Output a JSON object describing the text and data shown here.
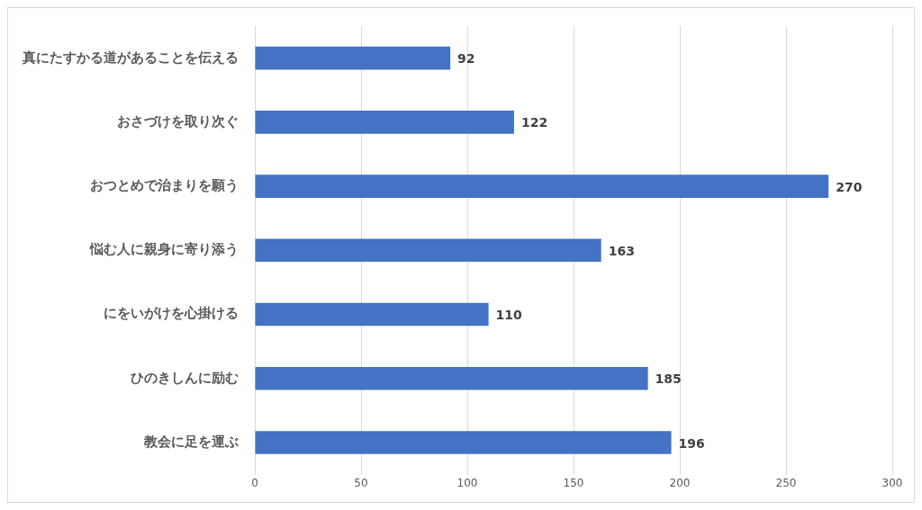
{
  "chart_data": {
    "type": "bar",
    "orientation": "horizontal",
    "categories": [
      "真にたすかる道があることを伝える",
      "おさづけを取り次ぐ",
      "おつとめで治まりを願う",
      "悩む人に親身に寄り添う",
      "にをいがけを心掛ける",
      "ひのきしんに励む",
      "教会に足を運ぶ"
    ],
    "values": [
      92,
      122,
      270,
      163,
      110,
      185,
      196
    ],
    "color": "#4472c4",
    "xlim": [
      0,
      300
    ],
    "xticks": [
      0,
      50,
      100,
      150,
      200,
      250,
      300
    ],
    "grid": "x",
    "data_labels": true
  }
}
